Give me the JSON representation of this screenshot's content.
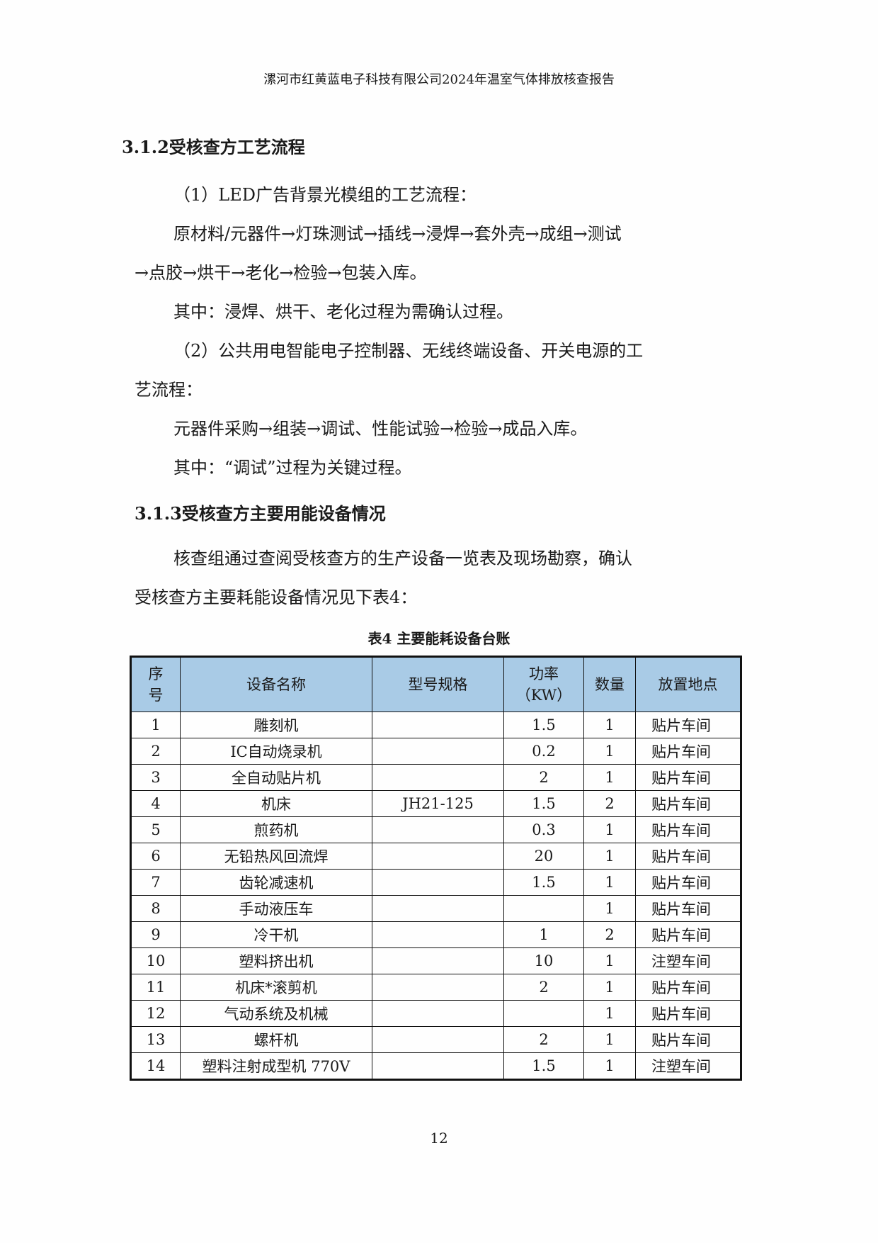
{
  "header": "漯河市红黄蓝电子科技有限公司2024年温室气体排放核查报告",
  "s312": {
    "title": "3.1.2受核查方工艺流程",
    "p1": "（1）LED广告背景光模组的工艺流程：",
    "p2a": "原材料/元器件→灯珠测试→插线→浸焊→套外壳→成组→测试",
    "p2b": "→点胶→烘干→老化→检验→包装入库。",
    "p3": "其中：浸焊、烘干、老化过程为需确认过程。",
    "p4a": "（2）公共用电智能电子控制器、无线终端设备、开关电源的工",
    "p4b": "艺流程：",
    "p5": "元器件采购→组装→调试、性能试验→检验→成品入库。",
    "p6": "其中：“调试”过程为关键过程。"
  },
  "s313": {
    "title": "3.1.3受核查方主要用能设备情况",
    "p1a": "核查组通过查阅受核查方的生产设备一览表及现场勘察，确认",
    "p1b": "受核查方主要耗能设备情况见下表4："
  },
  "table": {
    "caption": "表4  主要能耗设备台账",
    "headers": [
      "序号",
      "设备名称",
      "型号规格",
      "功率（KW）",
      "数量",
      "放置地点"
    ],
    "rows": [
      [
        "1",
        "雕刻机",
        "",
        "1.5",
        "1",
        "贴片车间"
      ],
      [
        "2",
        "IC自动烧录机",
        "",
        "0.2",
        "1",
        "贴片车间"
      ],
      [
        "3",
        "全自动贴片机",
        "",
        "2",
        "1",
        "贴片车间"
      ],
      [
        "4",
        "机床",
        "JH21-125",
        "1.5",
        "2",
        "贴片车间"
      ],
      [
        "5",
        "煎药机",
        "",
        "0.3",
        "1",
        "贴片车间"
      ],
      [
        "6",
        "无铅热风回流焊",
        "",
        "20",
        "1",
        "贴片车间"
      ],
      [
        "7",
        "齿轮减速机",
        "",
        "1.5",
        "1",
        "贴片车间"
      ],
      [
        "8",
        "手动液压车",
        "",
        "",
        "1",
        "贴片车间"
      ],
      [
        "9",
        "冷干机",
        "",
        "1",
        "2",
        "贴片车间"
      ],
      [
        "10",
        "塑料挤出机",
        "",
        "10",
        "1",
        "注塑车间"
      ],
      [
        "11",
        "机床*滚剪机",
        "",
        "2",
        "1",
        "贴片车间"
      ],
      [
        "12",
        "气动系统及机械",
        "",
        "",
        "1",
        "贴片车间"
      ],
      [
        "13",
        "螺杆机",
        "",
        "2",
        "1",
        "贴片车间"
      ],
      [
        "14",
        "塑料注射成型机 770V",
        "",
        "1.5",
        "1",
        "注塑车间"
      ]
    ]
  },
  "page_number": "12"
}
